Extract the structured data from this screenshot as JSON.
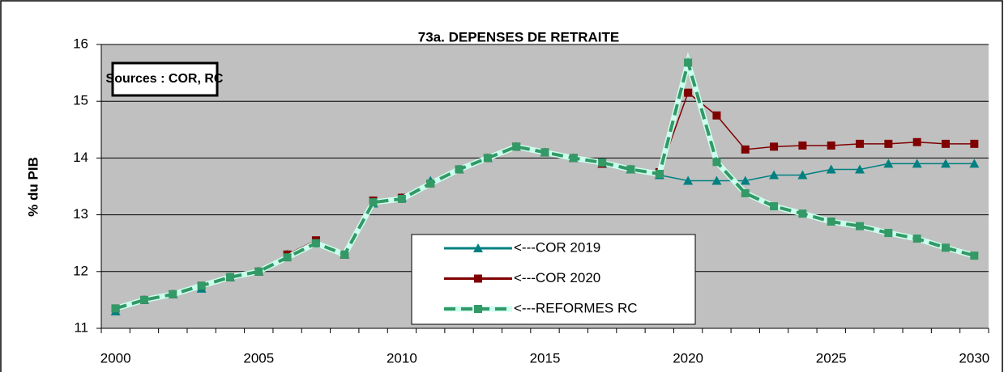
{
  "chart_data": {
    "type": "line",
    "title": "73a. DEPENSES DE RETRAITE",
    "y_label": "% du PIB",
    "annotation": "Sources : COR, RC",
    "x": [
      2000,
      2001,
      2002,
      2003,
      2004,
      2005,
      2006,
      2007,
      2008,
      2009,
      2010,
      2011,
      2012,
      2013,
      2014,
      2015,
      2016,
      2017,
      2018,
      2019,
      2020,
      2021,
      2022,
      2023,
      2024,
      2025,
      2026,
      2027,
      2028,
      2029,
      2030
    ],
    "xlim": [
      1999.5,
      2030.5
    ],
    "xticks": [
      2000,
      2005,
      2010,
      2015,
      2020,
      2025,
      2030
    ],
    "ylim": [
      11,
      16
    ],
    "yticks": [
      11,
      12,
      13,
      14,
      15,
      16
    ],
    "grid": true,
    "legend": "bottom-center",
    "series": [
      {
        "name": "<---COR 2019",
        "color": "#008080",
        "marker": "triangle",
        "values": [
          11.3,
          11.5,
          11.6,
          11.7,
          11.9,
          12.0,
          12.3,
          12.5,
          12.3,
          13.2,
          13.3,
          13.6,
          13.8,
          14.0,
          14.2,
          14.1,
          14.0,
          13.9,
          13.8,
          13.7,
          13.6,
          13.6,
          13.6,
          13.7,
          13.7,
          13.8,
          13.8,
          13.9,
          13.9,
          13.9,
          13.9
        ]
      },
      {
        "name": "<---COR 2020",
        "color": "#800000",
        "marker": "square",
        "values": [
          11.35,
          11.5,
          11.6,
          11.75,
          11.9,
          12.0,
          12.3,
          12.55,
          12.3,
          13.25,
          13.3,
          13.55,
          13.8,
          14.0,
          14.2,
          14.1,
          14.0,
          13.9,
          13.8,
          13.75,
          15.15,
          14.75,
          14.15,
          14.2,
          14.22,
          14.22,
          14.25,
          14.25,
          14.28,
          14.25,
          14.25
        ]
      },
      {
        "name": "<---REFORMES RC",
        "color": "#339966",
        "marker": "square",
        "dashed": true,
        "values": [
          11.35,
          11.5,
          11.6,
          11.75,
          11.9,
          12.0,
          12.25,
          12.5,
          12.3,
          13.22,
          13.28,
          13.55,
          13.8,
          14.0,
          14.2,
          14.1,
          14.0,
          13.92,
          13.8,
          13.72,
          15.68,
          13.93,
          13.38,
          13.15,
          13.02,
          12.88,
          12.8,
          12.68,
          12.58,
          12.42,
          12.28
        ]
      }
    ]
  }
}
